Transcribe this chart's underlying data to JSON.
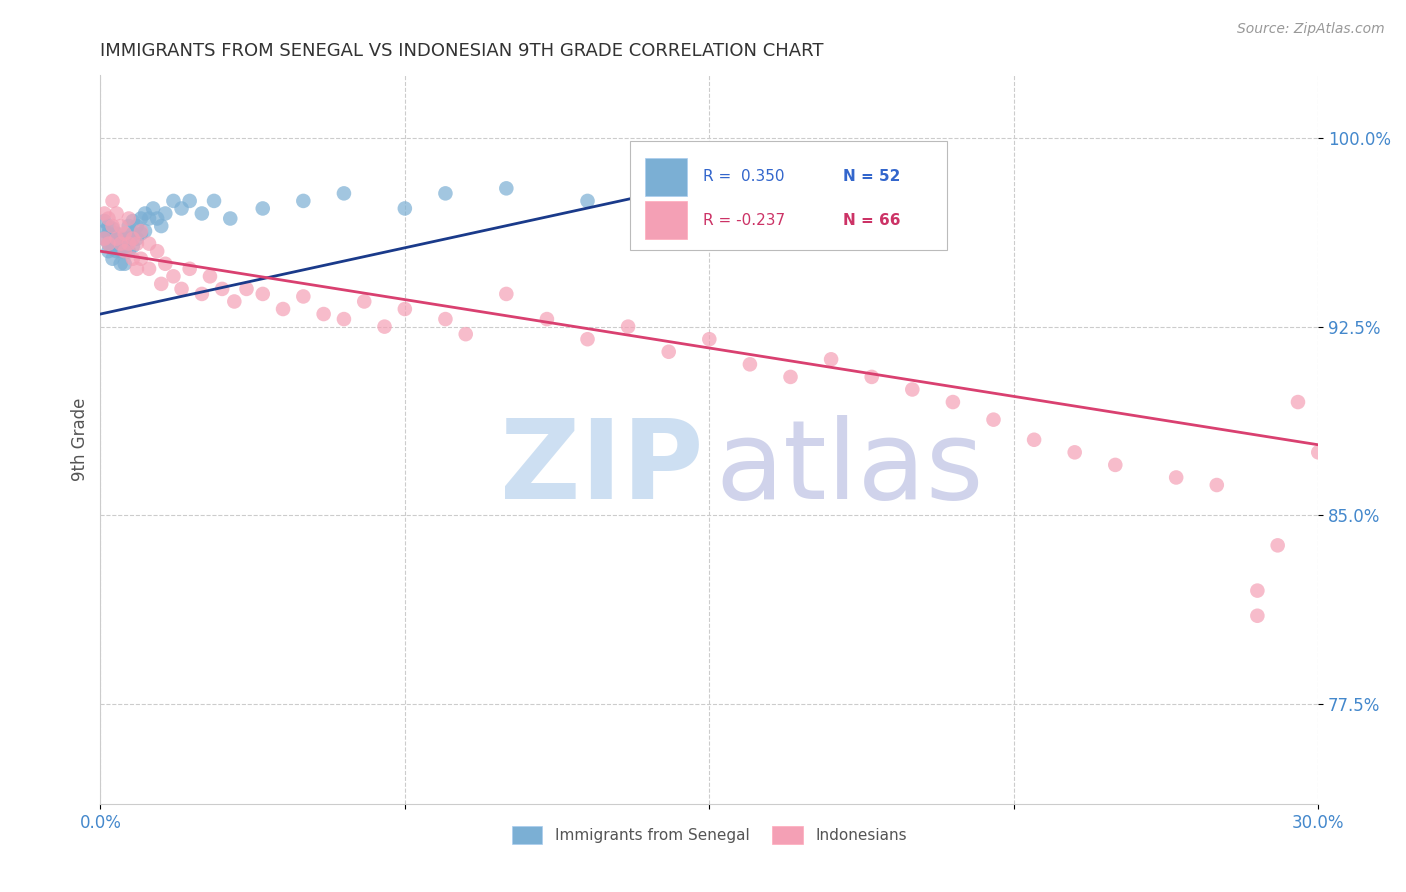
{
  "title": "IMMIGRANTS FROM SENEGAL VS INDONESIAN 9TH GRADE CORRELATION CHART",
  "source": "Source: ZipAtlas.com",
  "ylabel": "9th Grade",
  "ytick_labels": [
    "77.5%",
    "85.0%",
    "92.5%",
    "100.0%"
  ],
  "ytick_values": [
    0.775,
    0.85,
    0.925,
    1.0
  ],
  "xlim": [
    0.0,
    0.3
  ],
  "ylim": [
    0.735,
    1.025
  ],
  "legend_blue_r": "R =  0.350",
  "legend_blue_n": "N = 52",
  "legend_pink_r": "R = -0.237",
  "legend_pink_n": "N = 66",
  "blue_color": "#7bafd4",
  "pink_color": "#f4a0b5",
  "blue_line_color": "#1a3a8a",
  "pink_line_color": "#d94070",
  "title_color": "#333333",
  "axis_label_color": "#555555",
  "tick_color": "#4488cc",
  "watermark_zip_color": "#c5daf0",
  "watermark_atlas_color": "#c8cce8",
  "blue_scatter_x": [
    0.001,
    0.001,
    0.001,
    0.002,
    0.002,
    0.002,
    0.002,
    0.003,
    0.003,
    0.003,
    0.003,
    0.004,
    0.004,
    0.004,
    0.005,
    0.005,
    0.005,
    0.006,
    0.006,
    0.006,
    0.007,
    0.007,
    0.007,
    0.008,
    0.008,
    0.008,
    0.009,
    0.009,
    0.01,
    0.01,
    0.011,
    0.011,
    0.012,
    0.013,
    0.014,
    0.015,
    0.016,
    0.018,
    0.02,
    0.022,
    0.025,
    0.028,
    0.032,
    0.04,
    0.05,
    0.06,
    0.075,
    0.085,
    0.1,
    0.12,
    0.15,
    0.18
  ],
  "blue_scatter_y": [
    0.96,
    0.963,
    0.967,
    0.955,
    0.958,
    0.962,
    0.965,
    0.952,
    0.956,
    0.96,
    0.964,
    0.955,
    0.958,
    0.962,
    0.95,
    0.955,
    0.96,
    0.95,
    0.955,
    0.96,
    0.955,
    0.96,
    0.965,
    0.957,
    0.962,
    0.967,
    0.96,
    0.965,
    0.962,
    0.968,
    0.963,
    0.97,
    0.968,
    0.972,
    0.968,
    0.965,
    0.97,
    0.975,
    0.972,
    0.975,
    0.97,
    0.975,
    0.968,
    0.972,
    0.975,
    0.978,
    0.972,
    0.978,
    0.98,
    0.975,
    0.985,
    0.982
  ],
  "pink_scatter_x": [
    0.001,
    0.001,
    0.002,
    0.002,
    0.003,
    0.003,
    0.004,
    0.004,
    0.005,
    0.005,
    0.006,
    0.006,
    0.007,
    0.007,
    0.008,
    0.008,
    0.009,
    0.009,
    0.01,
    0.01,
    0.012,
    0.012,
    0.014,
    0.015,
    0.016,
    0.018,
    0.02,
    0.022,
    0.025,
    0.027,
    0.03,
    0.033,
    0.036,
    0.04,
    0.045,
    0.05,
    0.055,
    0.06,
    0.065,
    0.07,
    0.075,
    0.085,
    0.09,
    0.1,
    0.11,
    0.12,
    0.13,
    0.14,
    0.15,
    0.16,
    0.17,
    0.18,
    0.19,
    0.2,
    0.21,
    0.22,
    0.23,
    0.24,
    0.25,
    0.265,
    0.275,
    0.285,
    0.29,
    0.295,
    0.3,
    0.285
  ],
  "pink_scatter_y": [
    0.96,
    0.97,
    0.958,
    0.968,
    0.965,
    0.975,
    0.96,
    0.97,
    0.958,
    0.965,
    0.955,
    0.962,
    0.958,
    0.968,
    0.952,
    0.96,
    0.948,
    0.958,
    0.952,
    0.963,
    0.948,
    0.958,
    0.955,
    0.942,
    0.95,
    0.945,
    0.94,
    0.948,
    0.938,
    0.945,
    0.94,
    0.935,
    0.94,
    0.938,
    0.932,
    0.937,
    0.93,
    0.928,
    0.935,
    0.925,
    0.932,
    0.928,
    0.922,
    0.938,
    0.928,
    0.92,
    0.925,
    0.915,
    0.92,
    0.91,
    0.905,
    0.912,
    0.905,
    0.9,
    0.895,
    0.888,
    0.88,
    0.875,
    0.87,
    0.865,
    0.862,
    0.82,
    0.838,
    0.895,
    0.875,
    0.81
  ],
  "blue_trend_x": [
    0.0,
    0.185
  ],
  "blue_trend_y": [
    0.93,
    0.995
  ],
  "pink_trend_x": [
    0.0,
    0.3
  ],
  "pink_trend_y": [
    0.955,
    0.878
  ]
}
